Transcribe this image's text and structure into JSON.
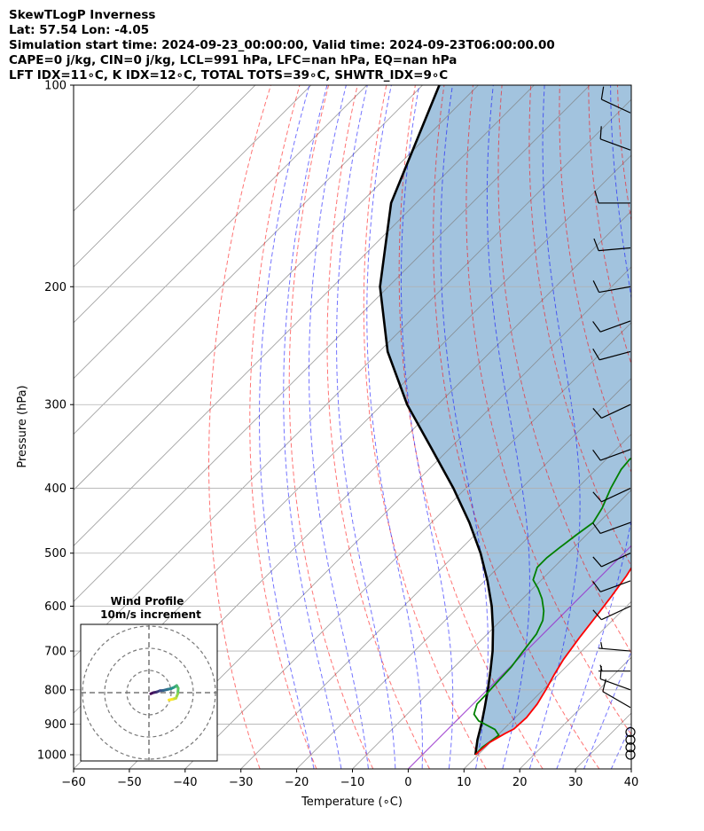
{
  "header": {
    "line1": "SkewTLogP Inverness",
    "line2": "Lat: 57.54   Lon: -4.05",
    "line3": "Simulation start time: 2024-09-23_00:00:00, Valid time: 2024-09-23T06:00:00.00",
    "line4": "CAPE=0 j/kg, CIN=0 j/kg, LCL=991 hPa, LFC=nan hPa, EQ=nan hPa",
    "line5": "LFT IDX=11∘C, K IDX=12∘C, TOTAL TOTS=39∘C, SHWTR_IDX=9∘C"
  },
  "colors": {
    "temperature": "#ff0000",
    "dewpoint": "#008000",
    "parcel": "#000000",
    "cape_fill": "#7aa9d0",
    "dry_adiabat": "#ff0000",
    "moist_adiabat": "#0000ff",
    "mixing_ratio": "#0000ff",
    "isotherm": "#808080",
    "zero_isotherm": "#9932cc"
  },
  "chart_data": [
    {
      "type": "line",
      "subtype": "skew-t log-p",
      "xlabel": "Temperature (∘C)",
      "ylabel": "Pressure (hPa)",
      "xlim": [
        -60,
        40
      ],
      "ylim": [
        1050,
        100
      ],
      "y_scale": "log",
      "x_ticks": [
        "−60",
        "−50",
        "−40",
        "−30",
        "−20",
        "−10",
        "0",
        "10",
        "20",
        "30",
        "40"
      ],
      "y_ticks": [
        "1000",
        "900",
        "800",
        "700",
        "600",
        "500",
        "400",
        "300",
        "200",
        "100"
      ],
      "grid": true,
      "series": [
        {
          "key": "temperature",
          "points": [
            [
              9.5,
              1000
            ],
            [
              9.8,
              960
            ],
            [
              11.0,
              930
            ],
            [
              11.8,
              915
            ],
            [
              12.0,
              880
            ],
            [
              11.5,
              840
            ],
            [
              10.5,
              800
            ],
            [
              9.3,
              760
            ],
            [
              8.2,
              720
            ],
            [
              7.2,
              670
            ],
            [
              6.3,
              620
            ],
            [
              5.5,
              580
            ],
            [
              4.5,
              540
            ],
            [
              3.0,
              500
            ],
            [
              1.3,
              465
            ],
            [
              -0.5,
              430
            ],
            [
              -2.0,
              400
            ],
            [
              -3.0,
              380
            ],
            [
              -4.3,
              350
            ],
            [
              -5.5,
              325
            ],
            [
              -6.8,
              300
            ],
            [
              -8.0,
              280
            ],
            [
              -9.8,
              262
            ],
            [
              -11.0,
              250
            ],
            [
              -11.8,
              238
            ],
            [
              -11.0,
              231
            ],
            [
              -8.5,
              219
            ],
            [
              -6.0,
              205
            ],
            [
              -4.8,
              195
            ],
            [
              -3.0,
              185
            ],
            [
              -0.3,
              176
            ],
            [
              3.0,
              168
            ],
            [
              4.8,
              160
            ],
            [
              6.5,
              152
            ],
            [
              8.2,
              144
            ],
            [
              9.8,
              137
            ],
            [
              12.0,
              129
            ],
            [
              14.0,
              121
            ],
            [
              16.0,
              113
            ],
            [
              17.5,
              107
            ],
            [
              18.2,
              100
            ]
          ]
        },
        {
          "key": "dewpoint",
          "points": [
            [
              9.5,
              1000
            ],
            [
              9.4,
              975
            ],
            [
              9.7,
              960
            ],
            [
              10.2,
              935
            ],
            [
              8.5,
              917
            ],
            [
              4.0,
              890
            ],
            [
              2.0,
              870
            ],
            [
              0.7,
              840
            ],
            [
              0.6,
              810
            ],
            [
              0.4,
              780
            ],
            [
              0.2,
              740
            ],
            [
              -0.5,
              700
            ],
            [
              -1.2,
              660
            ],
            [
              -2.5,
              630
            ],
            [
              -4.0,
              610
            ],
            [
              -6.5,
              585
            ],
            [
              -9.0,
              565
            ],
            [
              -11.5,
              548
            ],
            [
              -13.0,
              525
            ],
            [
              -13.0,
              508
            ],
            [
              -12.5,
              490
            ],
            [
              -11.8,
              470
            ],
            [
              -11.0,
              450
            ],
            [
              -12.0,
              428
            ],
            [
              -14.0,
              400
            ],
            [
              -15.5,
              375
            ],
            [
              -15.8,
              362
            ],
            [
              -13.8,
              345
            ],
            [
              -12.5,
              332
            ],
            [
              -12.0,
              315
            ],
            [
              -12.0,
              300
            ],
            [
              -12.5,
              280
            ],
            [
              -13.5,
              264
            ],
            [
              -15.0,
              252
            ],
            [
              -16.0,
              240
            ],
            [
              -16.5,
              231
            ],
            [
              -16.0,
              220
            ],
            [
              -15.5,
              205
            ],
            [
              -15.5,
              195
            ],
            [
              -16.0,
              185
            ],
            [
              -17.2,
              177
            ],
            [
              -18.8,
              168
            ],
            [
              -21.5,
              157
            ],
            [
              -23.5,
              150
            ],
            [
              -24.0,
              143
            ],
            [
              -23.5,
              137
            ],
            [
              -22.5,
              130
            ],
            [
              -20.0,
              121
            ],
            [
              -17.5,
              113
            ],
            [
              -15.5,
              106
            ],
            [
              -14.5,
              100
            ]
          ]
        },
        {
          "key": "parcel",
          "points": [
            [
              9.5,
              1000
            ],
            [
              9.1,
              991
            ],
            [
              7.2,
              950
            ],
            [
              5.1,
              900
            ],
            [
              2.7,
              850
            ],
            [
              0.1,
              800
            ],
            [
              -2.8,
              750
            ],
            [
              -6.0,
              700
            ],
            [
              -9.8,
              650
            ],
            [
              -14.2,
              600
            ],
            [
              -19.5,
              550
            ],
            [
              -25.7,
              500
            ],
            [
              -33.2,
              450
            ],
            [
              -42.2,
              400
            ],
            [
              -53.0,
              350
            ],
            [
              -65.5,
              300
            ],
            [
              -78.5,
              250
            ],
            [
              -91.5,
              200
            ],
            [
              -104.5,
              150
            ],
            [
              -117.0,
              100
            ]
          ]
        }
      ],
      "wind_barbs": [
        {
          "pressure": 1000,
          "speed_kt": 0,
          "dir_deg": 0
        },
        {
          "pressure": 975,
          "speed_kt": 0,
          "dir_deg": 0
        },
        {
          "pressure": 950,
          "speed_kt": 0,
          "dir_deg": 0
        },
        {
          "pressure": 925,
          "speed_kt": 0,
          "dir_deg": 0
        },
        {
          "pressure": 850,
          "speed_kt": 10,
          "dir_deg": 300
        },
        {
          "pressure": 800,
          "speed_kt": 10,
          "dir_deg": 290
        },
        {
          "pressure": 750,
          "speed_kt": 5,
          "dir_deg": 270
        },
        {
          "pressure": 700,
          "speed_kt": 5,
          "dir_deg": 275
        },
        {
          "pressure": 600,
          "speed_kt": 10,
          "dir_deg": 245
        },
        {
          "pressure": 550,
          "speed_kt": 10,
          "dir_deg": 250
        },
        {
          "pressure": 500,
          "speed_kt": 10,
          "dir_deg": 245
        },
        {
          "pressure": 450,
          "speed_kt": 10,
          "dir_deg": 250
        },
        {
          "pressure": 400,
          "speed_kt": 10,
          "dir_deg": 245
        },
        {
          "pressure": 350,
          "speed_kt": 10,
          "dir_deg": 250
        },
        {
          "pressure": 300,
          "speed_kt": 10,
          "dir_deg": 245
        },
        {
          "pressure": 250,
          "speed_kt": 10,
          "dir_deg": 255
        },
        {
          "pressure": 225,
          "speed_kt": 10,
          "dir_deg": 250
        },
        {
          "pressure": 200,
          "speed_kt": 10,
          "dir_deg": 260
        },
        {
          "pressure": 175,
          "speed_kt": 10,
          "dir_deg": 265
        },
        {
          "pressure": 150,
          "speed_kt": 10,
          "dir_deg": 270
        },
        {
          "pressure": 125,
          "speed_kt": 10,
          "dir_deg": 290
        },
        {
          "pressure": 110,
          "speed_kt": 10,
          "dir_deg": 295
        }
      ]
    },
    {
      "type": "line",
      "subtype": "hodograph",
      "title": "Wind Profile",
      "subtitle": "10m/s increment",
      "rings_ms": [
        10,
        20,
        30
      ],
      "points": [
        [
          0.8,
          -0.5
        ],
        [
          2.0,
          0.0
        ],
        [
          3.5,
          0.3
        ],
        [
          5.0,
          0.9
        ],
        [
          6.5,
          1.0
        ],
        [
          8.5,
          1.5
        ],
        [
          10.0,
          1.8
        ],
        [
          11.5,
          2.5
        ],
        [
          12.5,
          3.2
        ],
        [
          13.2,
          2.0
        ],
        [
          13.0,
          -0.5
        ],
        [
          12.2,
          -2.5
        ],
        [
          10.5,
          -3.0
        ],
        [
          9.0,
          -3.3
        ]
      ]
    }
  ]
}
